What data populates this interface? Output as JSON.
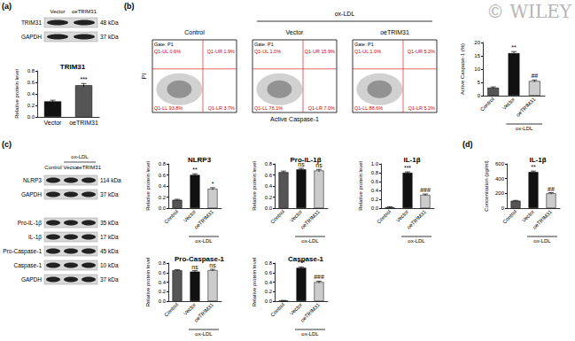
{
  "chart_data": [
    {
      "type": "bar",
      "title": "TRIM31",
      "y_label": "Relative protein level",
      "categories": [
        "Vector",
        "oeTRIM31"
      ],
      "values": [
        0.27,
        0.55
      ],
      "errors": [
        0.02,
        0.03
      ],
      "annotations": [
        null,
        "***"
      ],
      "colors": [
        "#111111",
        "#555555"
      ],
      "ylim": [
        0,
        0.8
      ],
      "yticks": [
        {
          "value": 0,
          "label": "0.0"
        },
        {
          "value": 0.2,
          "label": "0.2"
        },
        {
          "value": 0.4,
          "label": "0.4"
        },
        {
          "value": 0.6,
          "label": "0.6"
        },
        {
          "value": 0.8,
          "label": "0.8"
        }
      ]
    },
    {
      "type": "bar",
      "y_label": "Active Caspase-1 (%)",
      "group_label": "ox-LDL",
      "categories": [
        "Control",
        "Vector",
        "oeTRIM31"
      ],
      "values": [
        3,
        16,
        5.5
      ],
      "errors": [
        0.3,
        0.6,
        0.4
      ],
      "annotations": [
        null,
        "**",
        "##"
      ],
      "colors": [
        "#555555",
        "#111111",
        "#cccccc"
      ],
      "ylim": [
        0,
        20
      ],
      "yticks": [
        0,
        5,
        10,
        15,
        20
      ]
    },
    {
      "type": "bar",
      "title": "NLRP3",
      "y_label": "Relative protein level",
      "group_label": "ox-LDL",
      "categories": [
        "Control",
        "Vector",
        "oeTRIM31"
      ],
      "values": [
        0.15,
        0.6,
        0.35
      ],
      "errors": [
        0.01,
        0.02,
        0.02
      ],
      "annotations": [
        null,
        "**",
        "*"
      ],
      "colors": [
        "#555555",
        "#111111",
        "#cccccc"
      ],
      "ylim": [
        0,
        0.8
      ],
      "yticks": [
        {
          "value": 0,
          "label": "0.0"
        },
        {
          "value": 0.2,
          "label": "0.2"
        },
        {
          "value": 0.4,
          "label": "0.4"
        },
        {
          "value": 0.6,
          "label": "0.6"
        },
        {
          "value": 0.8,
          "label": "0.8"
        }
      ]
    },
    {
      "type": "bar",
      "title": "Pro-IL-1β",
      "y_label": "Relative protein level",
      "group_label": "ox-LDL",
      "categories": [
        "Control",
        "Vector",
        "oeTRIM31"
      ],
      "values": [
        0.65,
        0.7,
        0.68
      ],
      "errors": [
        0.02,
        0.02,
        0.02
      ],
      "annotations": [
        null,
        "ns",
        "ns"
      ],
      "colors": [
        "#555555",
        "#111111",
        "#cccccc"
      ],
      "ylim": [
        0,
        0.8
      ],
      "yticks": [
        {
          "value": 0,
          "label": "0.0"
        },
        {
          "value": 0.2,
          "label": "0.2"
        },
        {
          "value": 0.4,
          "label": "0.4"
        },
        {
          "value": 0.6,
          "label": "0.6"
        },
        {
          "value": 0.8,
          "label": "0.8"
        }
      ]
    },
    {
      "type": "bar",
      "title": "IL-1β",
      "y_label": "Relative protein level",
      "group_label": "ox-LDL",
      "categories": [
        "Control",
        "Vector",
        "oeTRIM31"
      ],
      "values": [
        0.02,
        0.8,
        0.3
      ],
      "errors": [
        0.01,
        0.02,
        0.02
      ],
      "annotations": [
        null,
        "***",
        "###"
      ],
      "colors": [
        "#555555",
        "#111111",
        "#cccccc"
      ],
      "ylim": [
        0,
        1
      ],
      "yticks": [
        {
          "value": 0,
          "label": "0.0"
        },
        {
          "value": 0.2,
          "label": "0.2"
        },
        {
          "value": 0.4,
          "label": "0.4"
        },
        {
          "value": 0.6,
          "label": "0.6"
        },
        {
          "value": 0.8,
          "label": "0.8"
        },
        {
          "value": 1,
          "label": "1.0"
        }
      ]
    },
    {
      "type": "bar",
      "title": "Pro-Caspase-1",
      "y_label": "Relative protein level",
      "group_label": "ox-LDL",
      "categories": [
        "Control",
        "Vector",
        "oeTRIM31"
      ],
      "values": [
        0.65,
        0.62,
        0.65
      ],
      "errors": [
        0.01,
        0.02,
        0.02
      ],
      "annotations": [
        null,
        "ns",
        "ns"
      ],
      "colors": [
        "#555555",
        "#111111",
        "#cccccc"
      ],
      "ylim": [
        0,
        0.8
      ],
      "yticks": [
        {
          "value": 0,
          "label": "0.0"
        },
        {
          "value": 0.2,
          "label": "0.2"
        },
        {
          "value": 0.4,
          "label": "0.4"
        },
        {
          "value": 0.6,
          "label": "0.6"
        },
        {
          "value": 0.8,
          "label": "0.8"
        }
      ]
    },
    {
      "type": "bar",
      "title": "Caspase-1",
      "y_label": "Relative protein level",
      "group_label": "ox-LDL",
      "categories": [
        "Control",
        "Vector",
        "oeTRIM31"
      ],
      "values": [
        0.01,
        0.7,
        0.4
      ],
      "errors": [
        0.005,
        0.02,
        0.02
      ],
      "annotations": [
        null,
        "***",
        "###"
      ],
      "colors": [
        "#555555",
        "#111111",
        "#cccccc"
      ],
      "ylim": [
        0,
        0.8
      ],
      "yticks": [
        {
          "value": 0,
          "label": "0.0"
        },
        {
          "value": 0.2,
          "label": "0.2"
        },
        {
          "value": 0.4,
          "label": "0.4"
        },
        {
          "value": 0.6,
          "label": "0.6"
        },
        {
          "value": 0.8,
          "label": "0.8"
        }
      ]
    },
    {
      "type": "bar",
      "title": "IL-1β",
      "y_label": "Concentration (pg/ml)",
      "group_label": "ox-LDL",
      "categories": [
        "Control",
        "Vector",
        "oeTRIM31"
      ],
      "values": [
        100,
        490,
        200
      ],
      "errors": [
        5,
        12,
        10
      ],
      "annotations": [
        null,
        "**",
        "##"
      ],
      "colors": [
        "#555555",
        "#111111",
        "#cccccc"
      ],
      "ylim": [
        0,
        600
      ],
      "yticks": [
        0,
        200,
        400,
        600
      ]
    }
  ],
  "panel_labels": [
    "(a)",
    "(b)",
    "(c)",
    "(d)"
  ],
  "watermark": "© WILEY",
  "blots": [
    {
      "headers": [
        "Vector",
        "oeTRIM31"
      ],
      "rows": [
        {
          "name": "TRIM31",
          "kda": "48 kDa"
        },
        {
          "name": "GAPDH",
          "kda": "37 kDa"
        }
      ]
    },
    {
      "group": "ox-LDL",
      "headers": [
        "Control",
        "Vector",
        "oeTRIM31"
      ],
      "rows": [
        {
          "name": "NLRP3",
          "kda": "114 kDa"
        },
        {
          "name": "GAPDH",
          "kda": "37 kDa"
        }
      ]
    },
    {
      "rows": [
        {
          "name": "Pro-IL-1β",
          "kda": "35 kDa"
        },
        {
          "name": "IL-1β",
          "kda": "17 kDa"
        },
        {
          "name": "Pro-Caspase-1",
          "kda": "45 kDa"
        },
        {
          "name": "Caspase-1",
          "kda": "10 kDa"
        },
        {
          "name": "GAPDH",
          "kda": "37 kDa"
        }
      ]
    }
  ],
  "flow": {
    "x_label": "Active Caspase-1",
    "y_label": "PI",
    "gate": "Gate: P1",
    "group": "ox-LDL",
    "plots": [
      {
        "header": "Control",
        "quadrants": {
          "UL": "Q1-UL 0.6%",
          "UR": "Q1-UR 1.9%",
          "LL": "Q1-LL 93.8%",
          "LR": "Q1-LR 3.7%"
        }
      },
      {
        "header": "Vector",
        "quadrants": {
          "UL": "Q1-UL 1.0%",
          "UR": "Q1-UR 15.9%",
          "LL": "Q1-LL 76.1%",
          "LR": "Q1-LR 7.0%"
        }
      },
      {
        "header": "oeTRIM31",
        "quadrants": {
          "UL": "Q1-UL 1.0%",
          "UR": "Q1-UR 5.2%",
          "LL": "Q1-LL 88.6%",
          "LR": "Q1-LR 5.2%"
        }
      }
    ]
  }
}
